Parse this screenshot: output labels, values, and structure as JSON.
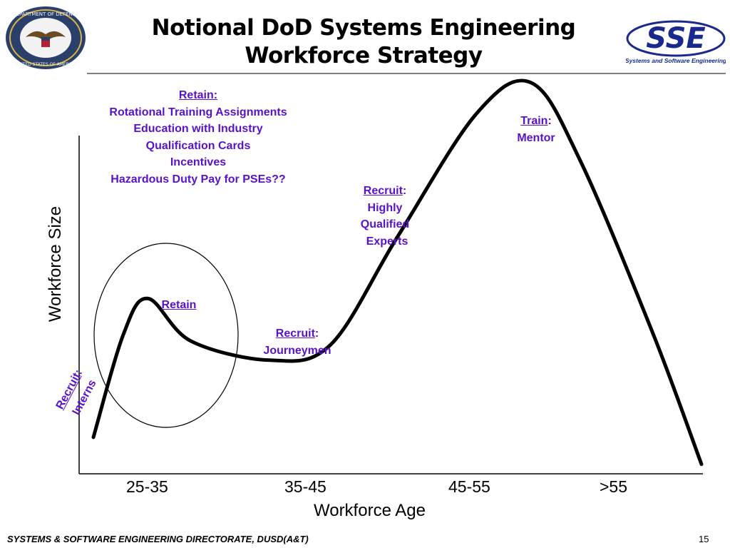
{
  "header": {
    "title_line1": "Notional DoD Systems Engineering",
    "title_line2": "Workforce Strategy",
    "seal_text_top": "DEPARTMENT OF DEFENSE",
    "seal_text_bottom": "UNITED STATES OF AMERICA",
    "logo_text": "SSE",
    "logo_subtext": "Systems and Software Engineering"
  },
  "chart_data": {
    "type": "line",
    "xlabel": "Workforce Age",
    "ylabel": "Workforce Size",
    "categories": [
      "25-35",
      "35-45",
      "45-55",
      ">55"
    ],
    "grid": false,
    "series": [
      {
        "points": [
          [
            0.0,
            0.08
          ],
          [
            0.05,
            0.35
          ],
          [
            0.09,
            0.44
          ],
          [
            0.16,
            0.33
          ],
          [
            0.29,
            0.28
          ],
          [
            0.39,
            0.32
          ],
          [
            0.5,
            0.6
          ],
          [
            0.63,
            0.92
          ],
          [
            0.72,
            1.0
          ],
          [
            0.8,
            0.8
          ],
          [
            0.92,
            0.35
          ],
          [
            1.0,
            0.01
          ]
        ]
      }
    ]
  },
  "annotations": {
    "retain_top": {
      "heading": "Retain:",
      "lines": [
        "Rotational Training Assignments",
        "Education with Industry",
        "Qualification Cards",
        "Incentives",
        "Hazardous Duty Pay for PSEs??"
      ]
    },
    "train": {
      "label": "Train",
      "suffix": ":",
      "line2": "Mentor"
    },
    "recruit_experts": {
      "label": "Recruit",
      "suffix": ":",
      "lines": [
        "Highly",
        "Qualified",
        "Experts"
      ]
    },
    "retain_circle": {
      "label": "Retain"
    },
    "recruit_journeymen": {
      "label": "Recruit",
      "suffix": ":",
      "line2": "Journeymen"
    },
    "recruit_interns": {
      "label": "Recruit",
      "suffix": ":",
      "line2": "Interns"
    }
  },
  "footer": {
    "left": "SYSTEMS & SOFTWARE ENGINEERING DIRECTORATE, DUSD(A&T)",
    "page_number": "15"
  },
  "colors": {
    "annotation": "#5a12c8",
    "curve": "#000000",
    "rule": "#808080",
    "logo_blue": "#1a2a8c"
  }
}
